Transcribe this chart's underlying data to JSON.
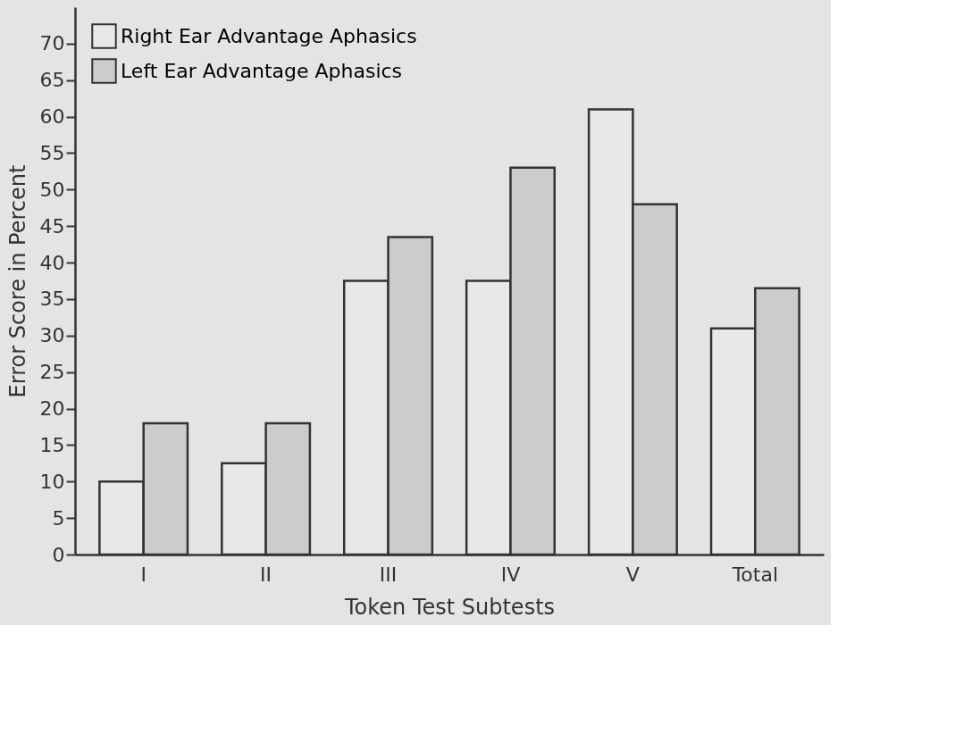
{
  "chart_data": {
    "type": "bar",
    "xlabel": "Token  Test  Subtests",
    "ylabel": "Error  Score  in  Percent",
    "categories": [
      "I",
      "II",
      "III",
      "IV",
      "V",
      "Total"
    ],
    "series": [
      {
        "name": "Right Ear Advantage Aphasics",
        "color": "#e8e8e8",
        "values": [
          10,
          12.5,
          37.5,
          37.5,
          61,
          31
        ]
      },
      {
        "name": "Left  Ear Advantage Aphasics",
        "color": "#cccccc",
        "values": [
          18,
          18,
          43.5,
          53,
          48,
          36.5
        ]
      }
    ],
    "ylim": [
      0,
      75
    ],
    "yticks": [
      0,
      5,
      10,
      15,
      20,
      25,
      30,
      35,
      40,
      45,
      50,
      55,
      60,
      65,
      70
    ],
    "grid": false,
    "legend": "top left"
  }
}
